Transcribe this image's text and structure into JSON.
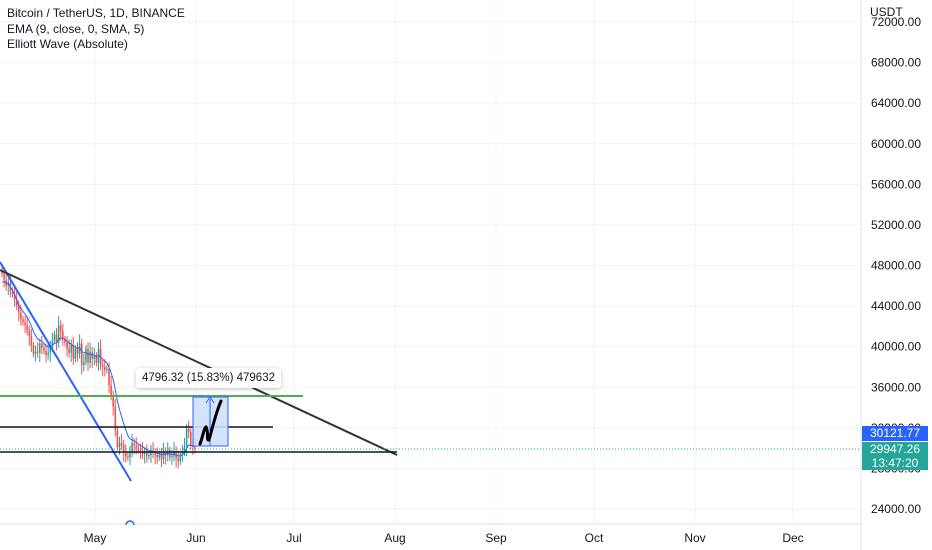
{
  "legend": {
    "symbol": "Bitcoin / TetherUS, 1D, BINANCE",
    "ema": "EMA (9, close, 0, SMA, 5)",
    "wave": "Elliott Wave (Absolute)"
  },
  "currency_label": "USDT",
  "price_badges": {
    "ema_value": "30121.77",
    "last_price": "29947.26",
    "countdown": "13:47:20"
  },
  "measure_label": "4796.32 (15.83%) 479632",
  "colors": {
    "up": "#26a69a",
    "down": "#ef5350",
    "ema": "#2962ff",
    "trendline": "#333333",
    "support": "#131722",
    "target": "#4caf50",
    "measure_fill": "#cfe0fb",
    "grid": "#f0f3fa",
    "axis_text": "#131722"
  },
  "chart_data": {
    "type": "candlestick",
    "x_axis_labels": [
      "May",
      "Jun",
      "Jul",
      "Aug",
      "Sep",
      "Oct",
      "Nov",
      "Dec"
    ],
    "y_axis_ticks": [
      24000,
      28000,
      32000,
      36000,
      40000,
      44000,
      48000,
      52000,
      56000,
      60000,
      64000,
      68000,
      72000
    ],
    "ylim": [
      23000,
      73000
    ],
    "close_series_approx": [
      47200,
      46600,
      46000,
      46300,
      45500,
      45200,
      44700,
      44100,
      43400,
      42700,
      42400,
      42100,
      41600,
      41000,
      40100,
      39300,
      39500,
      39400,
      40300,
      39900,
      39600,
      39200,
      39400,
      40100,
      40600,
      41200,
      40400,
      42100,
      41500,
      40700,
      40400,
      39800,
      39400,
      40200,
      38800,
      39800,
      39300,
      40300,
      38200,
      38500,
      39800,
      38400,
      39500,
      38800,
      39100,
      38400,
      39800,
      38200,
      38000,
      37700,
      37800,
      36200,
      35200,
      34100,
      31800,
      30100,
      30500,
      30300,
      29600,
      29200,
      29100,
      29600,
      30500,
      30300,
      30000,
      29800,
      29700,
      29400,
      29600,
      29200,
      29300,
      29700,
      29500,
      29300,
      29100,
      29400,
      28900,
      29600,
      29300,
      29800,
      29100,
      29200,
      29700,
      29000,
      28700,
      29400,
      29700,
      30100,
      31900,
      31600,
      30200,
      30100,
      29947.26
    ],
    "ema_last": 30121.77,
    "last_price": 29947.26,
    "horizontal_levels": [
      {
        "price": 34900,
        "role": "target"
      },
      {
        "price": 30000,
        "role": "resistance"
      },
      {
        "price": 29100,
        "role": "support"
      }
    ],
    "descending_trendline": {
      "from": {
        "date": "2022-03-29",
        "price": 47800
      },
      "to": {
        "date": "2022-08-01",
        "price": 29100
      }
    },
    "measure": {
      "from_price": 30100,
      "to_price": 34900,
      "change": 4796.32,
      "change_pct": 15.83
    }
  }
}
